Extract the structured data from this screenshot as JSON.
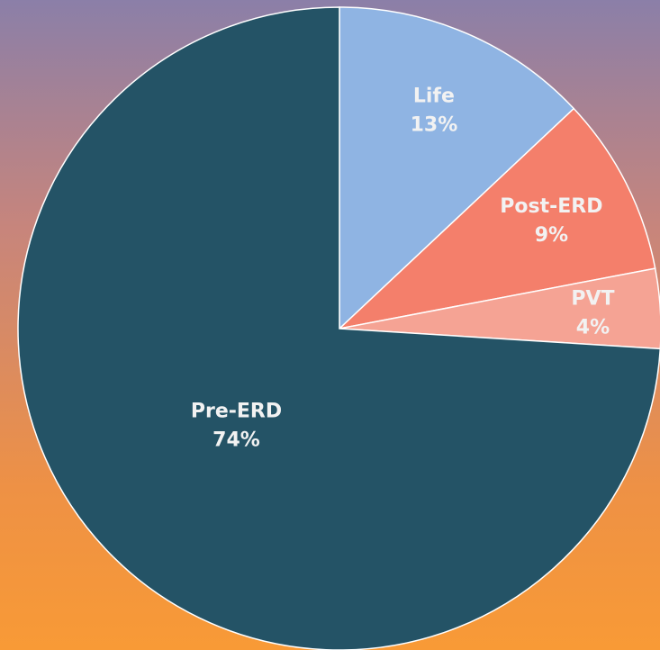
{
  "chart_data": {
    "type": "pie",
    "categories": [
      "Life",
      "Post-ERD",
      "PVT",
      "Pre-ERD"
    ],
    "values": [
      13,
      9,
      4,
      74
    ],
    "value_labels": [
      "13%",
      "9%",
      "4%",
      "74%"
    ],
    "colors": [
      "#8fb4e3",
      "#f47f6b",
      "#f5a394",
      "#245366"
    ]
  }
}
